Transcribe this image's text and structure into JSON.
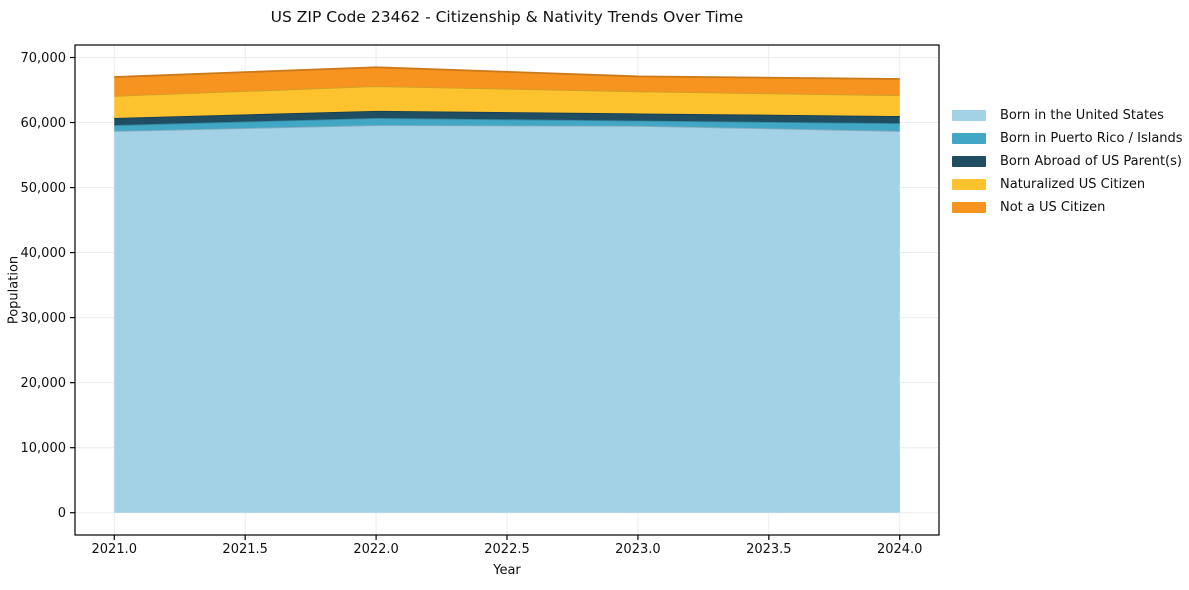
{
  "title": "US ZIP Code 23462 - Citizenship & Nativity Trends Over Time",
  "chart_data": {
    "type": "area",
    "stacked": true,
    "title": "US ZIP Code 23462 - Citizenship & Nativity Trends Over Time",
    "xlabel": "Year",
    "ylabel": "Population",
    "x": [
      2021,
      2022,
      2023,
      2024
    ],
    "series": [
      {
        "name": "Born in the United States",
        "color": "#a3d1e6",
        "values": [
          58700,
          59600,
          59500,
          58700
        ]
      },
      {
        "name": "Born in Puerto Rico / Islands",
        "color": "#41a7c4",
        "values": [
          900,
          1100,
          800,
          1200
        ]
      },
      {
        "name": "Born Abroad of US Parent(s)",
        "color": "#1f4e63",
        "values": [
          1100,
          1100,
          1100,
          1100
        ]
      },
      {
        "name": "Naturalized US Citizen",
        "color": "#fcc32f",
        "values": [
          3400,
          3800,
          3400,
          3200
        ]
      },
      {
        "name": "Not a US Citizen",
        "color": "#f7941f",
        "values": [
          2900,
          2900,
          2300,
          2500
        ]
      }
    ],
    "xlim": [
      2020.85,
      2024.15
    ],
    "ylim": [
      -3425,
      71925
    ],
    "xticks": [
      2021.0,
      2021.5,
      2022.0,
      2022.5,
      2023.0,
      2023.5,
      2024.0
    ],
    "xtick_labels": [
      "2021.0",
      "2021.5",
      "2022.0",
      "2022.5",
      "2023.0",
      "2023.5",
      "2024.0"
    ],
    "yticks": [
      0,
      10000,
      20000,
      30000,
      40000,
      50000,
      60000,
      70000
    ],
    "ytick_labels": [
      "0",
      "10,000",
      "20,000",
      "30,000",
      "40,000",
      "50,000",
      "60,000",
      "70,000"
    ],
    "grid": true,
    "grid_color": "#ececec",
    "spine_color": "#000000",
    "legend_position": "outside-right"
  }
}
